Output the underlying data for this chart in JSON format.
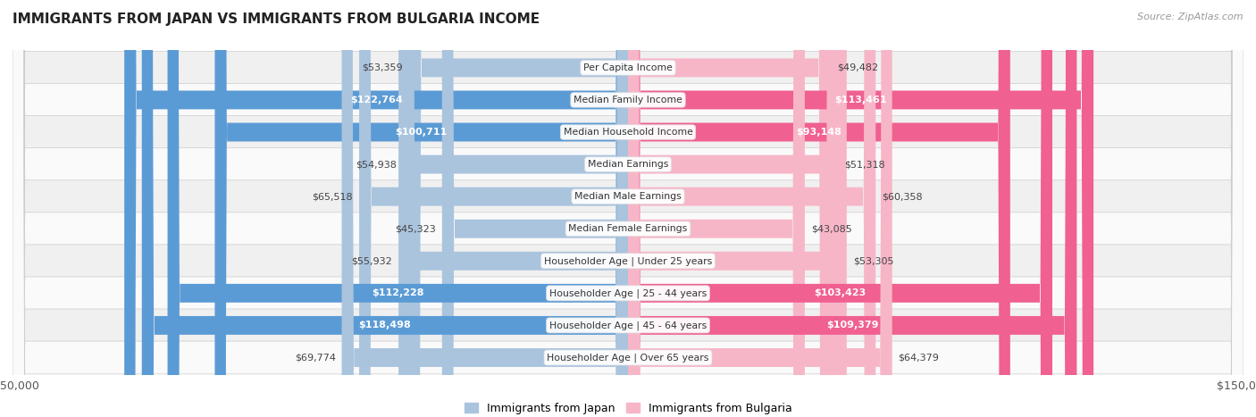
{
  "title": "IMMIGRANTS FROM JAPAN VS IMMIGRANTS FROM BULGARIA INCOME",
  "source": "Source: ZipAtlas.com",
  "categories": [
    "Per Capita Income",
    "Median Family Income",
    "Median Household Income",
    "Median Earnings",
    "Median Male Earnings",
    "Median Female Earnings",
    "Householder Age | Under 25 years",
    "Householder Age | 25 - 44 years",
    "Householder Age | 45 - 64 years",
    "Householder Age | Over 65 years"
  ],
  "japan_values": [
    53359,
    122764,
    100711,
    54938,
    65518,
    45323,
    55932,
    112228,
    118498,
    69774
  ],
  "bulgaria_values": [
    49482,
    113461,
    93148,
    51318,
    60358,
    43085,
    53305,
    103423,
    109379,
    64379
  ],
  "japan_labels": [
    "$53,359",
    "$122,764",
    "$100,711",
    "$54,938",
    "$65,518",
    "$45,323",
    "$55,932",
    "$112,228",
    "$118,498",
    "$69,774"
  ],
  "bulgaria_labels": [
    "$49,482",
    "$113,461",
    "$93,148",
    "$51,318",
    "$60,358",
    "$43,085",
    "$53,305",
    "$103,423",
    "$109,379",
    "$64,379"
  ],
  "japan_color_light": "#aac4de",
  "japan_color_dark": "#5b9bd5",
  "bulgaria_color_light": "#f7b6c8",
  "bulgaria_color_dark": "#f06090",
  "threshold_dark": 70000,
  "bar_height": 0.58,
  "xlim": 150000,
  "row_bg": "#f0f0f0",
  "row_bg2": "#fafafa",
  "legend_japan": "Immigrants from Japan",
  "legend_bulgaria": "Immigrants from Bulgaria"
}
